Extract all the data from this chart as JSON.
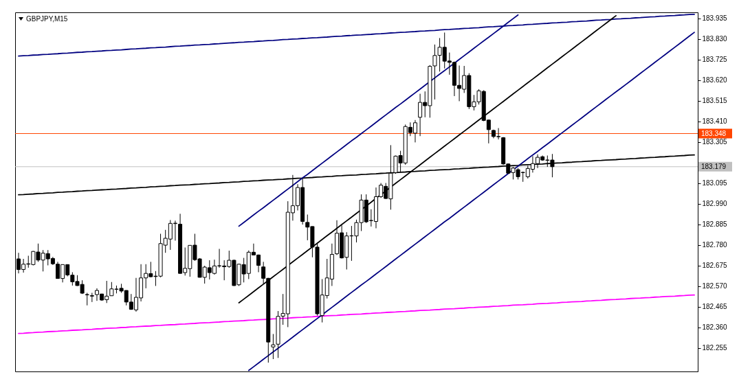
{
  "chart_data": {
    "type": "candlestick",
    "title": "GBPJPY,M15",
    "categories": [
      null,
      null,
      null,
      null,
      null,
      null,
      null,
      null,
      null,
      null,
      null,
      null,
      null,
      null,
      null,
      null,
      null,
      null,
      null,
      null,
      null,
      null,
      null,
      null,
      null,
      null,
      null,
      null,
      null,
      null,
      null,
      null,
      null,
      null,
      null,
      null,
      null,
      null,
      null,
      null,
      null,
      null,
      null,
      null,
      null,
      null,
      null,
      null,
      null,
      null,
      null,
      null,
      null,
      null,
      null,
      null,
      null,
      null,
      null,
      null,
      null,
      null,
      null,
      null,
      null,
      null,
      null,
      null,
      null,
      null,
      null,
      null,
      null,
      null,
      null,
      null,
      null,
      null,
      null,
      null,
      null,
      null,
      null,
      null,
      null,
      null,
      null,
      null,
      null,
      null,
      null,
      null,
      null,
      null,
      null,
      null,
      null,
      null,
      null,
      null,
      null,
      null,
      null,
      null,
      null,
      null,
      null,
      null,
      null,
      null,
      null,
      null,
      null,
      null,
      null,
      null,
      null,
      null,
      null,
      null,
      null,
      null,
      null,
      null,
      null,
      null,
      null,
      null,
      null,
      null,
      null,
      null,
      null,
      null,
      null,
      null,
      null,
      null,
      null
    ],
    "ohlc": [
      [
        182.709,
        182.74,
        182.635,
        182.655
      ],
      [
        182.655,
        182.709,
        182.639,
        182.682
      ],
      [
        182.682,
        182.725,
        182.664,
        182.684
      ],
      [
        182.68,
        182.749,
        182.676,
        182.747
      ],
      [
        182.744,
        182.787,
        182.694,
        182.703
      ],
      [
        182.703,
        182.754,
        182.645,
        182.738
      ],
      [
        182.736,
        182.754,
        182.676,
        182.709
      ],
      [
        182.711,
        182.719,
        182.678,
        182.684
      ],
      [
        182.682,
        182.694,
        182.608,
        182.609
      ],
      [
        182.609,
        182.681,
        182.589,
        182.68
      ],
      [
        182.68,
        182.681,
        182.62,
        182.627
      ],
      [
        182.626,
        182.641,
        182.573,
        182.592
      ],
      [
        182.594,
        182.626,
        182.571,
        182.573
      ],
      [
        182.579,
        182.6,
        182.53,
        182.534
      ],
      [
        182.527,
        182.536,
        182.472,
        182.526
      ],
      [
        182.519,
        182.536,
        182.489,
        182.522
      ],
      [
        182.527,
        182.559,
        182.495,
        182.548
      ],
      [
        182.53,
        182.531,
        182.495,
        182.499
      ],
      [
        182.501,
        182.597,
        182.484,
        182.519
      ],
      [
        182.521,
        182.591,
        182.52,
        182.556
      ],
      [
        182.554,
        182.573,
        182.533,
        182.555
      ],
      [
        182.559,
        182.582,
        182.536,
        182.545
      ],
      [
        182.548,
        182.549,
        182.472,
        182.489
      ],
      [
        182.489,
        182.53,
        182.449,
        182.452
      ],
      [
        182.449,
        182.612,
        182.44,
        182.513
      ],
      [
        182.51,
        182.682,
        182.492,
        182.612
      ],
      [
        182.612,
        182.682,
        182.559,
        182.635
      ],
      [
        182.634,
        182.694,
        182.615,
        182.618
      ],
      [
        182.621,
        182.647,
        182.571,
        182.619
      ],
      [
        182.621,
        182.837,
        182.615,
        182.787
      ],
      [
        182.779,
        182.857,
        182.74,
        182.814
      ],
      [
        182.81,
        182.907,
        182.755,
        182.89
      ],
      [
        182.889,
        182.904,
        182.802,
        182.891
      ],
      [
        182.886,
        182.939,
        182.634,
        182.635
      ],
      [
        182.639,
        182.767,
        182.624,
        182.661
      ],
      [
        182.659,
        182.779,
        182.618,
        182.778
      ],
      [
        182.779,
        182.837,
        182.699,
        182.705
      ],
      [
        182.709,
        182.713,
        182.614,
        182.615
      ],
      [
        182.615,
        182.674,
        182.583,
        182.667
      ],
      [
        182.664,
        182.702,
        182.604,
        182.639
      ],
      [
        182.635,
        182.705,
        182.629,
        182.673
      ],
      [
        182.673,
        182.76,
        182.664,
        182.674
      ],
      [
        182.673,
        182.702,
        182.6,
        182.669
      ],
      [
        182.67,
        182.751,
        182.664,
        182.702
      ],
      [
        182.702,
        182.705,
        182.571,
        182.573
      ],
      [
        182.577,
        182.684,
        182.571,
        182.682
      ],
      [
        182.68,
        182.714,
        182.589,
        182.632
      ],
      [
        182.635,
        182.752,
        182.606,
        182.743
      ],
      [
        182.743,
        182.787,
        182.728,
        182.729
      ],
      [
        182.729,
        182.731,
        182.641,
        182.676
      ],
      [
        182.668,
        182.694,
        182.583,
        182.61
      ],
      [
        182.61,
        182.612,
        182.18,
        182.285
      ],
      [
        182.26,
        182.326,
        182.198,
        182.271
      ],
      [
        182.274,
        182.443,
        182.204,
        182.416
      ],
      [
        182.417,
        182.53,
        182.373,
        182.431
      ],
      [
        182.429,
        183.003,
        182.361,
        182.947
      ],
      [
        182.944,
        183.137,
        182.904,
        182.98
      ],
      [
        182.98,
        183.09,
        182.956,
        183.073
      ],
      [
        183.073,
        183.119,
        182.884,
        182.9
      ],
      [
        182.895,
        182.935,
        182.804,
        182.871
      ],
      [
        182.874,
        182.875,
        182.717,
        182.769
      ],
      [
        182.769,
        182.793,
        182.42,
        182.429
      ],
      [
        182.42,
        182.606,
        182.385,
        182.525
      ],
      [
        182.522,
        182.709,
        182.507,
        182.612
      ],
      [
        182.606,
        182.787,
        182.571,
        182.732
      ],
      [
        182.735,
        182.906,
        182.729,
        182.84
      ],
      [
        182.842,
        182.88,
        182.711,
        182.714
      ],
      [
        182.717,
        182.845,
        182.655,
        182.826
      ],
      [
        182.826,
        182.877,
        182.699,
        182.827
      ],
      [
        182.826,
        182.909,
        182.793,
        182.894
      ],
      [
        182.894,
        183.038,
        182.851,
        183.009
      ],
      [
        183.009,
        183.038,
        182.892,
        182.898
      ],
      [
        182.904,
        182.962,
        182.874,
        182.905
      ],
      [
        182.9,
        183.073,
        182.865,
        183.026
      ],
      [
        183.026,
        183.096,
        183.02,
        183.085
      ],
      [
        183.079,
        183.096,
        183.015,
        183.017
      ],
      [
        183.015,
        183.289,
        182.96,
        183.146
      ],
      [
        183.149,
        183.236,
        183.143,
        183.233
      ],
      [
        183.236,
        183.26,
        183.149,
        183.198
      ],
      [
        183.198,
        183.394,
        183.189,
        183.384
      ],
      [
        183.38,
        183.405,
        183.335,
        183.353
      ],
      [
        183.35,
        183.417,
        183.303,
        183.403
      ],
      [
        183.431,
        183.551,
        183.335,
        183.507
      ],
      [
        183.507,
        183.563,
        183.431,
        183.49
      ],
      [
        183.49,
        183.697,
        183.429,
        183.691
      ],
      [
        183.693,
        183.802,
        183.522,
        183.746
      ],
      [
        183.747,
        183.835,
        183.664,
        183.788
      ],
      [
        183.788,
        183.863,
        183.68,
        183.717
      ],
      [
        183.718,
        183.761,
        183.648,
        183.711
      ],
      [
        183.711,
        183.715,
        183.539,
        183.594
      ],
      [
        183.594,
        183.695,
        183.513,
        183.578
      ],
      [
        183.574,
        183.693,
        183.555,
        183.644
      ],
      [
        183.644,
        183.656,
        183.473,
        183.485
      ],
      [
        183.485,
        183.545,
        183.466,
        183.51
      ],
      [
        183.51,
        183.574,
        183.496,
        183.566
      ],
      [
        183.563,
        183.569,
        183.411,
        183.415
      ],
      [
        183.417,
        183.419,
        183.298,
        183.368
      ],
      [
        183.364,
        183.368,
        183.324,
        183.333
      ],
      [
        183.333,
        183.376,
        183.318,
        183.332
      ],
      [
        183.327,
        183.33,
        183.189,
        183.193
      ],
      [
        183.193,
        183.195,
        183.143,
        183.146
      ],
      [
        183.149,
        183.178,
        183.114,
        183.172
      ],
      [
        183.164,
        183.172,
        183.114,
        183.128
      ],
      [
        183.149,
        183.154,
        183.102,
        183.15
      ],
      [
        183.128,
        183.184,
        183.119,
        183.17
      ],
      [
        183.166,
        183.233,
        183.149,
        183.195
      ],
      [
        183.195,
        183.242,
        183.172,
        183.227
      ],
      [
        183.23,
        183.236,
        183.209,
        183.213
      ],
      [
        183.213,
        183.236,
        183.178,
        183.212
      ],
      [
        183.213,
        183.244,
        183.125,
        183.179
      ],
      null,
      null,
      null,
      null,
      null,
      null,
      null,
      null,
      null,
      null,
      null,
      null,
      null,
      null,
      null,
      null,
      null,
      null,
      null,
      null,
      null,
      null,
      null,
      null,
      null,
      null,
      null,
      null,
      null
    ],
    "colors": [
      "#000000",
      "#ffffff",
      "#ffffff",
      "#ffffff",
      "#000000",
      "#ffffff",
      "#000000",
      "#000000",
      "#000000",
      "#ffffff",
      "#000000",
      "#000000",
      "#000000",
      "#000000",
      "#000000",
      "#ffffff",
      "#ffffff",
      "#000000",
      "#ffffff",
      "#ffffff",
      "#ffffff",
      "#000000",
      "#000000",
      "#000000",
      "#ffffff",
      "#ffffff",
      "#ffffff",
      "#000000",
      "#000000",
      "#ffffff",
      "#ffffff",
      "#ffffff",
      "#ffffff",
      "#000000",
      "#ffffff",
      "#ffffff",
      "#000000",
      "#000000",
      "#ffffff",
      "#000000",
      "#ffffff",
      "#ffffff",
      "#000000",
      "#ffffff",
      "#000000",
      "#ffffff",
      "#000000",
      "#ffffff",
      "#000000",
      "#000000",
      "#000000",
      "#000000",
      "#ffffff",
      "#ffffff",
      "#ffffff",
      "#ffffff",
      "#ffffff",
      "#ffffff",
      "#000000",
      "#000000",
      "#000000",
      "#000000",
      "#ffffff",
      "#ffffff",
      "#ffffff",
      "#ffffff",
      "#000000",
      "#ffffff",
      "#ffffff",
      "#ffffff",
      "#ffffff",
      "#000000",
      "#ffffff",
      "#ffffff",
      "#ffffff",
      "#000000",
      "#ffffff",
      "#ffffff",
      "#000000",
      "#ffffff",
      "#000000",
      "#ffffff",
      "#ffffff",
      "#000000",
      "#ffffff",
      "#ffffff",
      "#ffffff",
      "#000000",
      "#000000",
      "#000000",
      "#000000",
      "#ffffff",
      "#000000",
      "#ffffff",
      "#ffffff",
      "#000000",
      "#000000",
      "#000000",
      "#000000",
      "#000000",
      "#000000",
      "#ffffff",
      "#000000",
      "#ffffff",
      "#ffffff",
      "#ffffff",
      "#ffffff",
      "#000000",
      "#000000",
      "#000000",
      null,
      null,
      null,
      null,
      null,
      null,
      null,
      null,
      null,
      null,
      null,
      null,
      null,
      null,
      null,
      null,
      null,
      null,
      null,
      null,
      null,
      null,
      null,
      null,
      null,
      null,
      null,
      null,
      null
    ],
    "series": [
      {
        "type": "line",
        "color": "#000080",
        "values": [
          183.743,
          183.745,
          183.746,
          183.748,
          183.749,
          183.751,
          183.752,
          183.754,
          183.755,
          183.757,
          183.758,
          183.76,
          183.762,
          183.763,
          183.765,
          183.766,
          183.768,
          183.769,
          183.771,
          183.772,
          183.774,
          183.775,
          183.777,
          183.779,
          183.78,
          183.782,
          183.783,
          183.785,
          183.786,
          183.788,
          183.789,
          183.791,
          183.793,
          183.794,
          183.796,
          183.797,
          183.799,
          183.8,
          183.802,
          183.803,
          183.805,
          183.806,
          183.808,
          183.81,
          183.811,
          183.813,
          183.814,
          183.816,
          183.817,
          183.819,
          183.82,
          183.822,
          183.823,
          183.825,
          183.827,
          183.828,
          183.83,
          183.831,
          183.833,
          183.834,
          183.836,
          183.837,
          183.839,
          183.84,
          183.842,
          183.844,
          183.845,
          183.847,
          183.848,
          183.85,
          183.851,
          183.853,
          183.854,
          183.856,
          183.857,
          183.859,
          183.861,
          183.862,
          183.864,
          183.865,
          183.867,
          183.868,
          183.87,
          183.871,
          183.873,
          183.874,
          183.876,
          183.878,
          183.879,
          183.881,
          183.882,
          183.884,
          183.885,
          183.887,
          183.888,
          183.89,
          183.892,
          183.893,
          183.895,
          183.896,
          183.898,
          183.899,
          183.901,
          183.902,
          183.904,
          183.905,
          183.907,
          183.909,
          183.91,
          183.912,
          183.913,
          183.915,
          183.916,
          183.918,
          183.919,
          183.921,
          183.922,
          183.924,
          183.926,
          183.927,
          183.929,
          183.93,
          183.932,
          183.933,
          183.935,
          183.936,
          183.938,
          183.939,
          183.941,
          183.943,
          183.944,
          183.946,
          183.947,
          183.949,
          183.95,
          183.952,
          183.953,
          183.955,
          183.956
        ]
      },
      {
        "type": "line",
        "color": "#000000",
        "values": [
          183.036,
          183.037,
          183.039,
          183.04,
          183.042,
          183.043,
          183.045,
          183.046,
          183.048,
          183.049,
          183.051,
          183.052,
          183.054,
          183.055,
          183.057,
          183.058,
          183.06,
          183.061,
          183.062,
          183.064,
          183.065,
          183.067,
          183.068,
          183.07,
          183.071,
          183.073,
          183.074,
          183.076,
          183.077,
          183.079,
          183.08,
          183.082,
          183.083,
          183.085,
          183.086,
          183.087,
          183.089,
          183.09,
          183.092,
          183.093,
          183.095,
          183.096,
          183.098,
          183.099,
          183.101,
          183.102,
          183.104,
          183.105,
          183.107,
          183.108,
          183.11,
          183.111,
          183.112,
          183.114,
          183.115,
          183.117,
          183.118,
          183.12,
          183.121,
          183.123,
          183.124,
          183.126,
          183.127,
          183.129,
          183.13,
          183.132,
          183.133,
          183.135,
          183.136,
          183.137,
          183.139,
          183.14,
          183.142,
          183.143,
          183.145,
          183.146,
          183.148,
          183.149,
          183.151,
          183.152,
          183.154,
          183.155,
          183.157,
          183.158,
          183.16,
          183.161,
          183.163,
          183.164,
          183.165,
          183.167,
          183.168,
          183.17,
          183.171,
          183.173,
          183.174,
          183.176,
          183.177,
          183.179,
          183.18,
          183.182,
          183.183,
          183.185,
          183.186,
          183.188,
          183.189,
          183.19,
          183.192,
          183.193,
          183.195,
          183.196,
          183.198,
          183.199,
          183.201,
          183.202,
          183.204,
          183.205,
          183.207,
          183.208,
          183.21,
          183.211,
          183.213,
          183.214,
          183.215,
          183.217,
          183.218,
          183.22,
          183.221,
          183.223,
          183.224,
          183.226,
          183.227,
          183.229,
          183.23,
          183.232,
          183.233,
          183.235,
          183.236,
          183.238,
          183.239
        ]
      },
      {
        "type": "line",
        "color": "#ff00ff",
        "values": [
          182.329,
          182.33,
          182.332,
          182.333,
          182.335,
          182.336,
          182.338,
          182.339,
          182.34,
          182.342,
          182.343,
          182.345,
          182.346,
          182.347,
          182.349,
          182.35,
          182.352,
          182.353,
          182.355,
          182.356,
          182.357,
          182.359,
          182.36,
          182.362,
          182.363,
          182.365,
          182.366,
          182.367,
          182.369,
          182.37,
          182.372,
          182.373,
          182.374,
          182.376,
          182.377,
          182.379,
          182.38,
          182.382,
          182.383,
          182.384,
          182.386,
          182.387,
          182.389,
          182.39,
          182.392,
          182.393,
          182.394,
          182.396,
          182.397,
          182.399,
          182.4,
          182.401,
          182.403,
          182.404,
          182.406,
          182.407,
          182.409,
          182.41,
          182.411,
          182.413,
          182.414,
          182.416,
          182.417,
          182.419,
          182.42,
          182.421,
          182.423,
          182.424,
          182.426,
          182.427,
          182.428,
          182.43,
          182.431,
          182.433,
          182.434,
          182.436,
          182.437,
          182.438,
          182.44,
          182.441,
          182.443,
          182.444,
          182.446,
          182.447,
          182.448,
          182.45,
          182.451,
          182.453,
          182.454,
          182.455,
          182.457,
          182.458,
          182.46,
          182.461,
          182.463,
          182.464,
          182.465,
          182.467,
          182.468,
          182.47,
          182.471,
          182.473,
          182.474,
          182.475,
          182.477,
          182.478,
          182.48,
          182.481,
          182.482,
          182.484,
          182.485,
          182.487,
          182.488,
          182.49,
          182.491,
          182.492,
          182.494,
          182.495,
          182.497,
          182.498,
          182.5,
          182.501,
          182.502,
          182.504,
          182.505,
          182.507,
          182.508,
          182.509,
          182.511,
          182.512,
          182.514,
          182.515,
          182.517,
          182.518,
          182.519,
          182.521,
          182.522,
          182.524,
          182.525
        ]
      },
      {
        "type": "line",
        "color": "#000080",
        "values": [
          null,
          null,
          null,
          null,
          null,
          null,
          null,
          null,
          null,
          null,
          null,
          null,
          null,
          null,
          null,
          null,
          null,
          null,
          null,
          null,
          null,
          null,
          null,
          null,
          null,
          null,
          null,
          null,
          null,
          null,
          null,
          null,
          null,
          null,
          null,
          null,
          null,
          null,
          null,
          null,
          null,
          null,
          null,
          null,
          null,
          182.876,
          182.895,
          182.914,
          182.933,
          182.952,
          182.97,
          182.989,
          183.008,
          183.027,
          183.046,
          183.065,
          183.084,
          183.103,
          183.122,
          183.14,
          183.159,
          183.178,
          183.197,
          183.216,
          183.235,
          183.254,
          183.273,
          183.292,
          183.311,
          183.329,
          183.348,
          183.367,
          183.386,
          183.405,
          183.424,
          183.443,
          183.462,
          183.481,
          183.499,
          183.518,
          183.537,
          183.556,
          183.575,
          183.594,
          183.613,
          183.632,
          183.651,
          183.669,
          183.688,
          183.707,
          183.726,
          183.745,
          183.764,
          183.783,
          183.802,
          183.821,
          183.839,
          183.858,
          183.877,
          183.896,
          183.915,
          183.934,
          183.953,
          null,
          null,
          null,
          null,
          null,
          null,
          null,
          null,
          null,
          null,
          null,
          null,
          null,
          null,
          null,
          null,
          null,
          null,
          null,
          null,
          null,
          null,
          null,
          null,
          null,
          null,
          null,
          null,
          null,
          null,
          null,
          null,
          null,
          null,
          null,
          null
        ]
      },
      {
        "type": "line",
        "color": "#000000",
        "values": [
          null,
          null,
          null,
          null,
          null,
          null,
          null,
          null,
          null,
          null,
          null,
          null,
          null,
          null,
          null,
          null,
          null,
          null,
          null,
          null,
          null,
          null,
          null,
          null,
          null,
          null,
          null,
          null,
          null,
          null,
          null,
          null,
          null,
          null,
          null,
          null,
          null,
          null,
          null,
          null,
          null,
          null,
          null,
          null,
          null,
          182.485,
          182.504,
          182.523,
          182.542,
          182.561,
          182.58,
          182.599,
          182.618,
          182.637,
          182.656,
          182.675,
          182.694,
          182.713,
          182.732,
          182.751,
          182.77,
          182.789,
          182.808,
          182.827,
          182.846,
          182.865,
          182.884,
          182.903,
          182.922,
          182.941,
          182.96,
          182.979,
          182.998,
          183.018,
          183.037,
          183.056,
          183.075,
          183.094,
          183.113,
          183.132,
          183.151,
          183.17,
          183.189,
          183.208,
          183.227,
          183.246,
          183.265,
          183.284,
          183.303,
          183.322,
          183.341,
          183.36,
          183.379,
          183.398,
          183.417,
          183.436,
          183.455,
          183.474,
          183.493,
          183.512,
          183.531,
          183.55,
          183.569,
          183.588,
          183.607,
          183.626,
          183.645,
          183.664,
          183.683,
          183.702,
          183.721,
          183.74,
          183.759,
          183.778,
          183.797,
          183.816,
          183.835,
          183.854,
          183.873,
          183.892,
          183.911,
          183.93,
          183.949,
          null,
          null,
          null,
          null,
          null,
          null,
          null,
          null,
          null,
          null,
          null,
          null,
          null,
          null,
          null,
          null
        ]
      },
      {
        "type": "line",
        "color": "#000080",
        "values": [
          null,
          null,
          null,
          null,
          null,
          null,
          null,
          null,
          null,
          null,
          null,
          null,
          null,
          null,
          null,
          null,
          null,
          null,
          null,
          null,
          null,
          null,
          null,
          null,
          null,
          null,
          null,
          null,
          null,
          null,
          null,
          null,
          null,
          null,
          null,
          null,
          null,
          null,
          null,
          null,
          null,
          null,
          null,
          null,
          null,
          null,
          null,
          182.14,
          182.159,
          182.178,
          182.197,
          182.216,
          182.235,
          182.253,
          182.272,
          182.291,
          182.31,
          182.329,
          182.348,
          182.367,
          182.386,
          182.405,
          182.424,
          182.443,
          182.462,
          182.481,
          182.5,
          182.519,
          182.538,
          182.557,
          182.576,
          182.594,
          182.613,
          182.632,
          182.651,
          182.67,
          182.689,
          182.708,
          182.727,
          182.746,
          182.765,
          182.784,
          182.803,
          182.822,
          182.841,
          182.86,
          182.879,
          182.898,
          182.916,
          182.935,
          182.954,
          182.973,
          182.992,
          183.011,
          183.03,
          183.049,
          183.068,
          183.087,
          183.106,
          183.125,
          183.144,
          183.163,
          183.182,
          183.201,
          183.22,
          183.239,
          183.257,
          183.276,
          183.295,
          183.314,
          183.333,
          183.352,
          183.371,
          183.39,
          183.409,
          183.428,
          183.447,
          183.466,
          183.485,
          183.504,
          183.523,
          183.542,
          183.561,
          183.579,
          183.598,
          183.617,
          183.636,
          183.655,
          183.674,
          183.693,
          183.712,
          183.731,
          183.75,
          183.769,
          183.788,
          183.807,
          183.826,
          183.845,
          183.864
        ]
      }
    ],
    "ylim": [
      182.135,
      183.966
    ],
    "yticks": [
      182.255,
      {
        "value": 182.36,
        "label": "182.360"
      },
      182.465,
      {
        "value": 182.57,
        "label": "182.570"
      },
      182.675,
      {
        "value": 182.78,
        "label": "182.780"
      },
      182.885,
      {
        "value": 182.99,
        "label": "182.990"
      },
      183.095,
      {
        "value": 183.2,
        "label": null
      },
      183.305,
      {
        "value": 183.41,
        "label": "183.410"
      },
      183.515,
      {
        "value": 183.62,
        "label": "183.620"
      },
      183.725,
      {
        "value": 183.83,
        "label": "183.830"
      },
      183.935
    ],
    "tick_labels": "y",
    "ref_lines": [
      {
        "axis": "y",
        "value": 183.348,
        "label": "183.348",
        "color": "#ff4500"
      },
      {
        "axis": "y",
        "value": 183.179,
        "label": "183.179",
        "color": "#c0c0c0"
      }
    ]
  }
}
